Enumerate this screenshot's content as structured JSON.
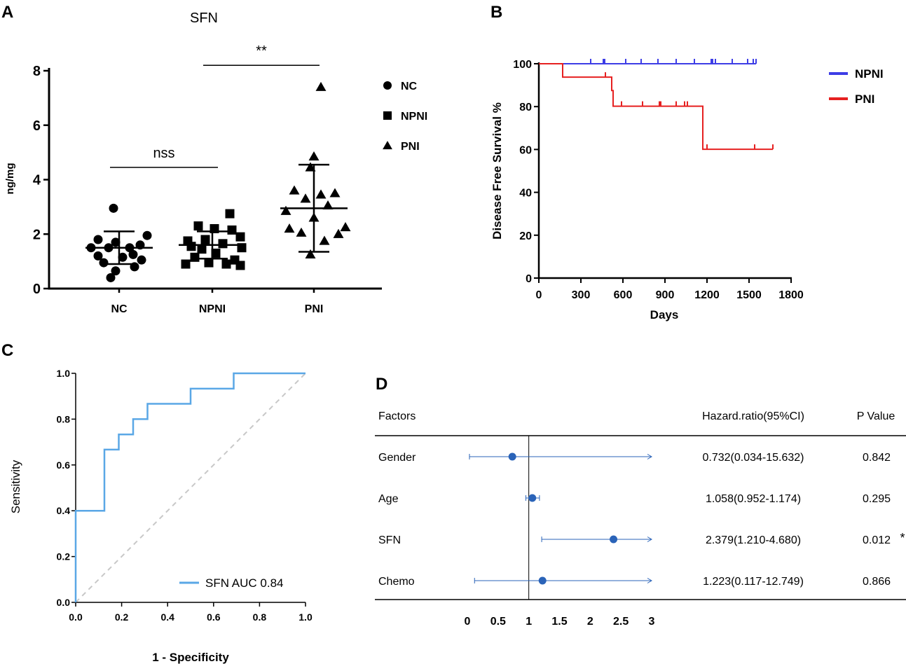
{
  "panel_letters": {
    "a": "A",
    "b": "B",
    "c": "C",
    "d": "D"
  },
  "colors": {
    "npni": "#3d3de6",
    "pni": "#e62020",
    "roc": "#5aa7e6",
    "diag": "#c8c8c8",
    "forest": "#2a63b8"
  },
  "chart_data": [
    {
      "id": "A",
      "type": "scatter",
      "title": "SFN",
      "ylabel": "ng/mg",
      "xlabel": "",
      "ylim": [
        0,
        8
      ],
      "yticks": [
        "0",
        "2",
        "4",
        "6",
        "8"
      ],
      "categories": [
        "NC",
        "NPNI",
        "PNI"
      ],
      "legend": [
        {
          "label": "NC",
          "marker": "circle"
        },
        {
          "label": "NPNI",
          "marker": "square"
        },
        {
          "label": "PNI",
          "marker": "triangle"
        }
      ],
      "series": [
        {
          "name": "NC",
          "marker": "circle",
          "mean": 1.5,
          "sd_low": 0.9,
          "sd_high": 2.1,
          "points": [
            [
              -0.08,
              2.95
            ],
            [
              0.4,
              1.95
            ],
            [
              -0.3,
              1.8
            ],
            [
              -0.05,
              1.7
            ],
            [
              0.3,
              1.6
            ],
            [
              -0.15,
              1.5
            ],
            [
              0.15,
              1.5
            ],
            [
              -0.4,
              1.5
            ],
            [
              0.2,
              1.25
            ],
            [
              -0.3,
              1.2
            ],
            [
              0.05,
              1.15
            ],
            [
              0.32,
              1.05
            ],
            [
              -0.22,
              0.95
            ],
            [
              0.22,
              0.8
            ],
            [
              -0.05,
              0.65
            ],
            [
              -0.12,
              0.4
            ]
          ]
        },
        {
          "name": "NPNI",
          "marker": "square",
          "mean": 1.6,
          "sd_low": 1.1,
          "sd_high": 2.1,
          "points": [
            [
              0.25,
              2.75
            ],
            [
              -0.2,
              2.3
            ],
            [
              0.03,
              2.2
            ],
            [
              0.28,
              2.15
            ],
            [
              0.4,
              1.9
            ],
            [
              -0.1,
              1.8
            ],
            [
              -0.35,
              1.75
            ],
            [
              0.15,
              1.65
            ],
            [
              -0.3,
              1.55
            ],
            [
              0.42,
              1.5
            ],
            [
              -0.15,
              1.45
            ],
            [
              0.05,
              1.3
            ],
            [
              -0.25,
              1.15
            ],
            [
              0.32,
              1.05
            ],
            [
              -0.05,
              0.95
            ],
            [
              0.2,
              0.9
            ],
            [
              0.4,
              0.85
            ],
            [
              -0.38,
              0.9
            ]
          ]
        },
        {
          "name": "PNI",
          "marker": "triangle",
          "mean": 2.95,
          "sd_low": 1.35,
          "sd_high": 4.55,
          "points": [
            [
              0.1,
              7.4
            ],
            [
              0.0,
              4.85
            ],
            [
              -0.05,
              4.45
            ],
            [
              -0.28,
              3.6
            ],
            [
              0.3,
              3.5
            ],
            [
              0.1,
              3.45
            ],
            [
              -0.12,
              3.3
            ],
            [
              0.2,
              3.05
            ],
            [
              -0.4,
              2.85
            ],
            [
              0.0,
              2.6
            ],
            [
              -0.35,
              2.2
            ],
            [
              0.45,
              2.25
            ],
            [
              -0.18,
              2.05
            ],
            [
              0.35,
              2.0
            ],
            [
              0.15,
              1.75
            ],
            [
              -0.05,
              1.25
            ]
          ]
        }
      ],
      "annotations": [
        {
          "label": "nss",
          "from": "NC",
          "to": "NPNI",
          "y": 4.45
        },
        {
          "label": "**",
          "from": "NPNI",
          "to": "PNI",
          "y": 8.2
        }
      ]
    },
    {
      "id": "B",
      "type": "line",
      "title": "",
      "xlabel": "Days",
      "ylabel": "Disease Free Survival %",
      "xlim": [
        0,
        1800
      ],
      "ylim": [
        0,
        100
      ],
      "xticks": [
        "0",
        "300",
        "600",
        "900",
        "1200",
        "1500",
        "1800"
      ],
      "yticks": [
        "0",
        "20",
        "40",
        "60",
        "80",
        "100"
      ],
      "series": [
        {
          "name": "NPNI",
          "color": "#3d3de6",
          "steps": [
            [
              0,
              100
            ],
            [
              1550,
              100
            ]
          ],
          "censors": [
            370,
            460,
            470,
            620,
            730,
            850,
            980,
            1110,
            1230,
            1240,
            1260,
            1380,
            1490,
            1530,
            1550
          ]
        },
        {
          "name": "PNI",
          "color": "#e62020",
          "steps": [
            [
              0,
              100
            ],
            [
              170,
              100
            ],
            [
              170,
              93.75
            ],
            [
              520,
              93.75
            ],
            [
              520,
              87.5
            ],
            [
              530,
              87.5
            ],
            [
              530,
              80.2
            ],
            [
              1170,
              80.2
            ],
            [
              1170,
              60.1
            ],
            [
              1670,
              60.1
            ]
          ],
          "censors": [
            475,
            590,
            740,
            860,
            870,
            980,
            1040,
            1060,
            1200,
            1540,
            1670
          ]
        }
      ],
      "legend": [
        {
          "label": "NPNI"
        },
        {
          "label": "PNI"
        }
      ]
    },
    {
      "id": "C",
      "type": "line",
      "title": "",
      "xlabel": "1 - Specificity",
      "ylabel": "Sensitivity",
      "xlim": [
        0,
        1
      ],
      "ylim": [
        0,
        1
      ],
      "xticks": [
        "0.0",
        "0.2",
        "0.4",
        "0.6",
        "0.8",
        "1.0"
      ],
      "yticks": [
        "0.0",
        "0.2",
        "0.4",
        "0.6",
        "0.8",
        "1.0"
      ],
      "series": [
        {
          "name": "SFN",
          "auc_text": "SFN  AUC 0.84",
          "points": [
            [
              0,
              0
            ],
            [
              0,
              0.4
            ],
            [
              0.125,
              0.4
            ],
            [
              0.125,
              0.667
            ],
            [
              0.1875,
              0.667
            ],
            [
              0.1875,
              0.733
            ],
            [
              0.25,
              0.733
            ],
            [
              0.25,
              0.8
            ],
            [
              0.3125,
              0.8
            ],
            [
              0.3125,
              0.867
            ],
            [
              0.5,
              0.867
            ],
            [
              0.5,
              0.933
            ],
            [
              0.6875,
              0.933
            ],
            [
              0.6875,
              1.0
            ],
            [
              1.0,
              1.0
            ]
          ]
        }
      ],
      "reference_line": [
        [
          0,
          0
        ],
        [
          1,
          1
        ]
      ]
    },
    {
      "id": "D",
      "type": "forest",
      "title": "",
      "header": {
        "factors": "Factors",
        "hr": "Hazard.ratio(95%CI)",
        "p": "P Value"
      },
      "xlim": [
        0,
        3
      ],
      "xticks": [
        "0",
        "0.5",
        "1",
        "1.5",
        "2",
        "2.5",
        "3"
      ],
      "reference": 1,
      "rows": [
        {
          "factor": "Gender",
          "hr": 0.732,
          "low": 0.034,
          "high": 15.632,
          "hr_text": "0.732(0.034-15.632)",
          "p": "0.842",
          "sig": ""
        },
        {
          "factor": "Age",
          "hr": 1.058,
          "low": 0.952,
          "high": 1.174,
          "hr_text": "1.058(0.952-1.174)",
          "p": "0.295",
          "sig": ""
        },
        {
          "factor": "SFN",
          "hr": 2.379,
          "low": 1.21,
          "high": 4.68,
          "hr_text": "2.379(1.210-4.680)",
          "p": "0.012",
          "sig": "*"
        },
        {
          "factor": "Chemo",
          "hr": 1.223,
          "low": 0.117,
          "high": 12.749,
          "hr_text": "1.223(0.117-12.749)",
          "p": "0.866",
          "sig": ""
        }
      ]
    }
  ]
}
